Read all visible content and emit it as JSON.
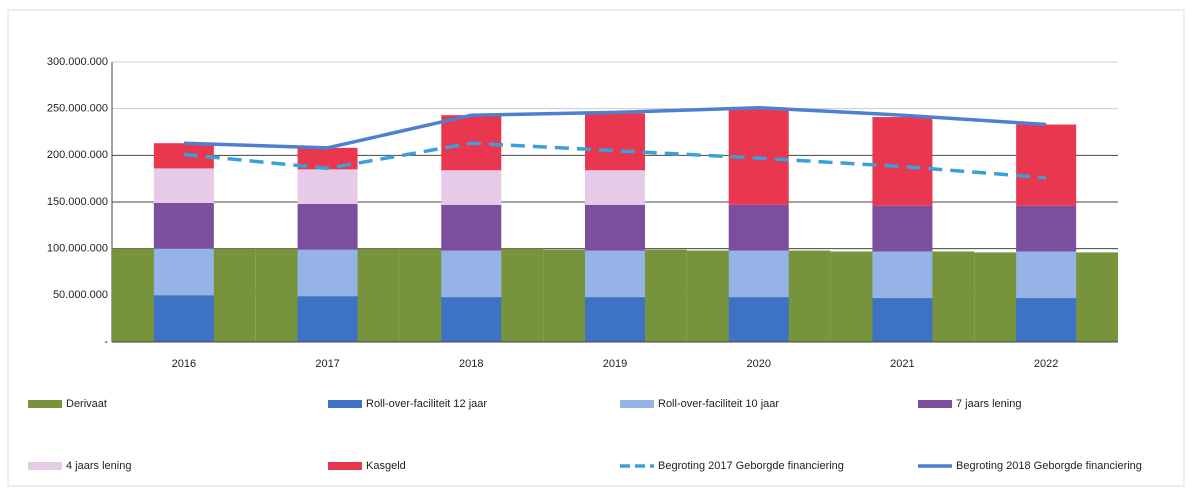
{
  "chart_data": {
    "type": "bar",
    "categories": [
      "2016",
      "2017",
      "2018",
      "2019",
      "2020",
      "2021",
      "2022"
    ],
    "series": [
      {
        "name": "Derivaat",
        "color": "#77933c",
        "type": "bar",
        "stacked": false,
        "values": [
          100000000,
          100000000,
          100000000,
          99000000,
          98000000,
          97000000,
          96000000
        ]
      },
      {
        "name": "Roll-over-faciliteit 12 jaar",
        "color": "#3d72c4",
        "type": "bar",
        "stacked": true,
        "values": [
          50000000,
          49000000,
          48000000,
          48000000,
          48000000,
          47000000,
          47000000
        ]
      },
      {
        "name": "Roll-over-faciliteit 10 jaar",
        "color": "#95b3e7",
        "type": "bar",
        "stacked": true,
        "values": [
          50000000,
          50000000,
          50000000,
          50000000,
          50000000,
          50000000,
          50000000
        ]
      },
      {
        "name": "7 jaars lening",
        "color": "#7b4f9e",
        "type": "bar",
        "stacked": true,
        "values": [
          49000000,
          49000000,
          49000000,
          49000000,
          49000000,
          49000000,
          49000000
        ]
      },
      {
        "name": "4 jaars lening",
        "color": "#e6cbe8",
        "type": "bar",
        "stacked": true,
        "values": [
          37000000,
          37000000,
          37000000,
          37000000,
          0,
          0,
          0
        ]
      },
      {
        "name": "Kasgeld",
        "color": "#e8374f",
        "type": "bar",
        "stacked": true,
        "values": [
          27000000,
          23000000,
          59000000,
          61000000,
          103000000,
          95000000,
          87000000
        ]
      },
      {
        "name": "Begroting 2017 Geborgde financiering",
        "color": "#3ba0d9",
        "type": "line",
        "dashed": true,
        "values": [
          201000000,
          186000000,
          213000000,
          205000000,
          197000000,
          188000000,
          176000000
        ]
      },
      {
        "name": "Begroting 2018 Geborgde financiering",
        "color": "#4f7fd0",
        "type": "line",
        "dashed": false,
        "values": [
          213000000,
          208000000,
          243000000,
          246000000,
          251000000,
          243000000,
          233000000
        ]
      }
    ],
    "ylim": [
      0,
      300000000
    ],
    "yticks": [
      {
        "value": 0,
        "label": "-"
      },
      {
        "value": 50000000,
        "label": "50.000.000"
      },
      {
        "value": 100000000,
        "label": "100.000.000"
      },
      {
        "value": 150000000,
        "label": "150.000.000"
      },
      {
        "value": 200000000,
        "label": "200.000.000"
      },
      {
        "value": 250000000,
        "label": "250.000.000"
      },
      {
        "value": 300000000,
        "label": "300.000.000"
      }
    ],
    "grid": true
  }
}
